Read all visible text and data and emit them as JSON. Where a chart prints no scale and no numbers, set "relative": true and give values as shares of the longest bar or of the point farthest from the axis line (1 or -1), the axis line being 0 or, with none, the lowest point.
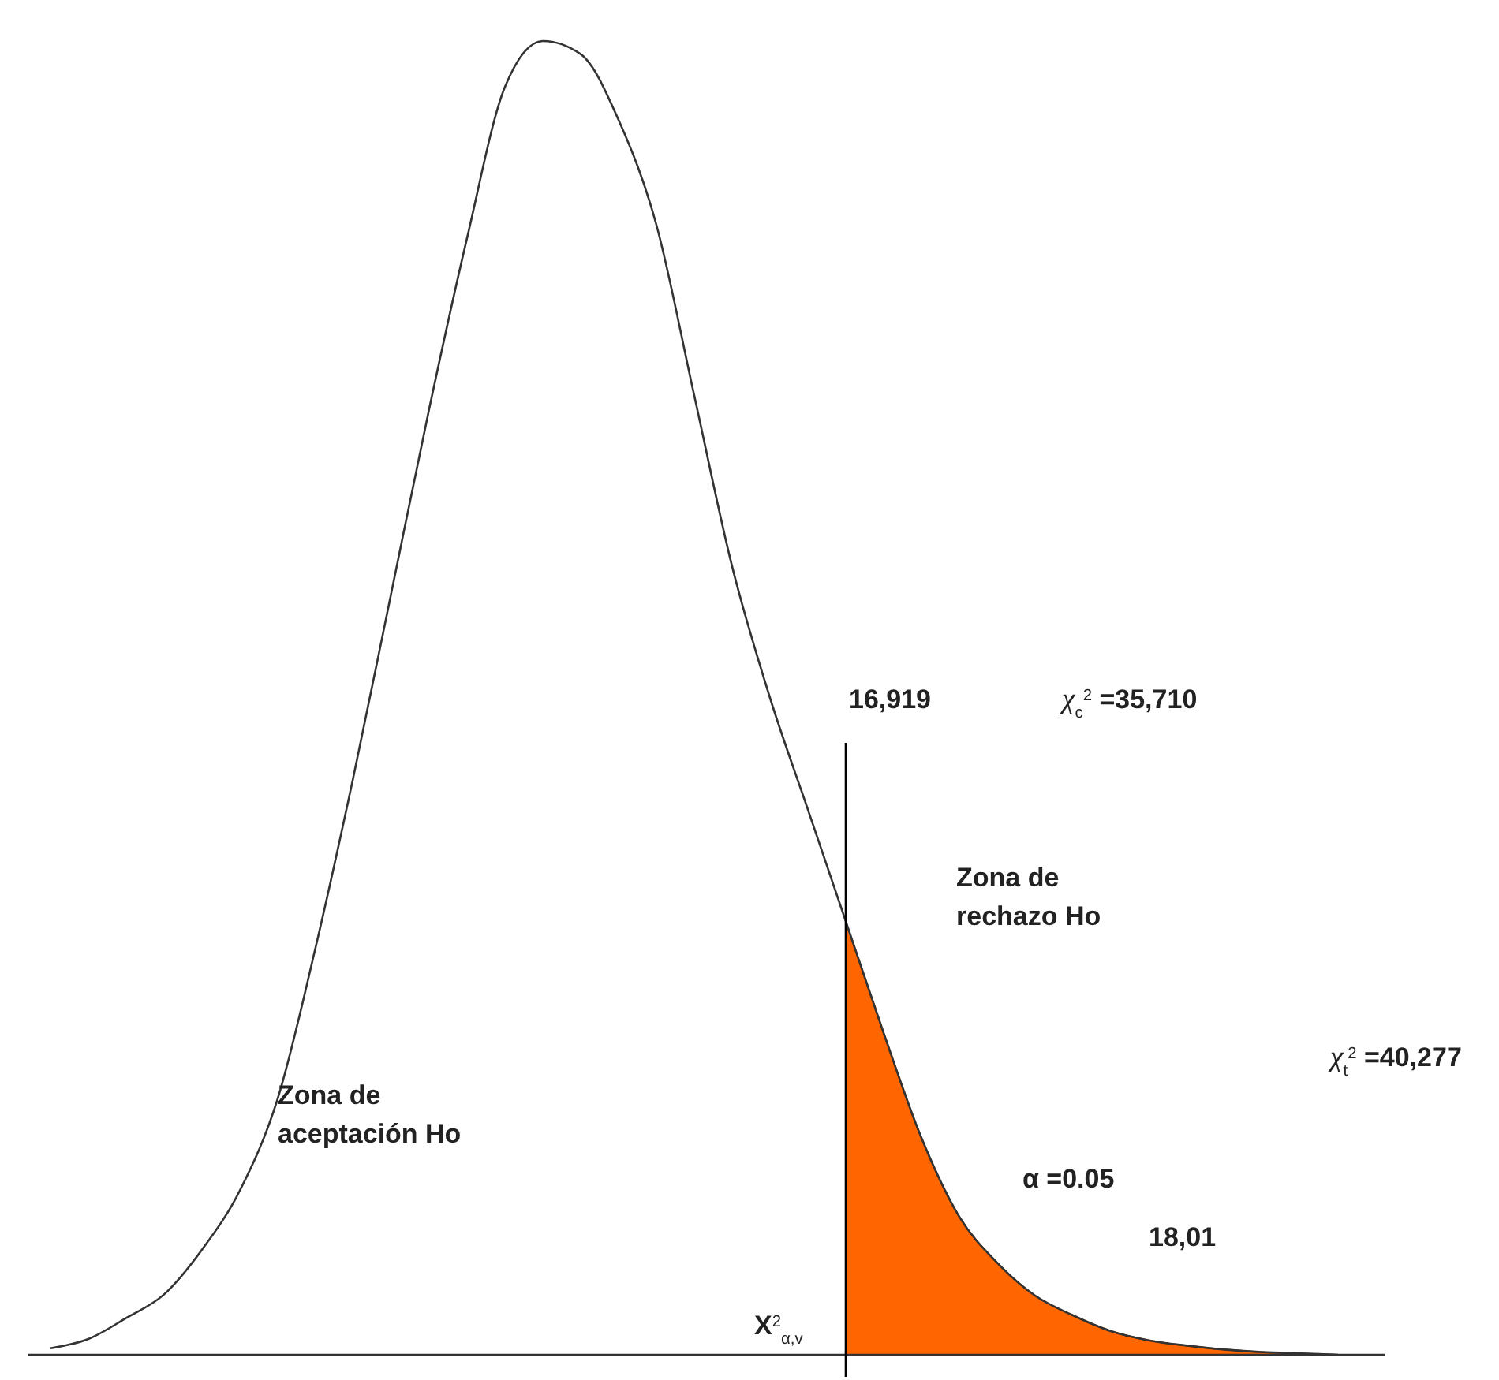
{
  "chart_data": {
    "type": "line",
    "relative": true,
    "categories": [
      null,
      null,
      null,
      null,
      null,
      null,
      null,
      null,
      null,
      null,
      null,
      null,
      null,
      null,
      null,
      null,
      null,
      null,
      null,
      null,
      null,
      null,
      null,
      null,
      null,
      null,
      null,
      null,
      null,
      null,
      null,
      null,
      null,
      null,
      null
    ],
    "series": [
      {
        "color": "#333333",
        "values": [
          0.005,
          0.012,
          0.028,
          0.046,
          0.08,
          0.125,
          0.195,
          0.31,
          0.44,
          0.58,
          0.72,
          0.85,
          0.965,
          1.0,
          0.99,
          0.94,
          0.86,
          0.73,
          0.6,
          0.5,
          0.415,
          0.33,
          0.245,
          0.165,
          0.105,
          0.07,
          0.045,
          0.03,
          0.018,
          0.011,
          0.007,
          0.004,
          0.002,
          0.001,
          0.0
        ]
      },
      {
        "type": "area",
        "color": "#ff6600",
        "values": [
          null,
          null,
          null,
          null,
          null,
          null,
          null,
          null,
          null,
          null,
          null,
          null,
          null,
          null,
          null,
          null,
          null,
          null,
          null,
          null,
          null,
          0.33,
          0.245,
          0.165,
          0.105,
          0.07,
          0.045,
          0.03,
          0.018,
          0.011,
          0.007,
          0.004,
          0.002,
          0.001,
          0.0
        ]
      }
    ],
    "annotations": [
      "16,919",
      "χ$_{c}$$^{2}$ =35,710",
      "Zona de\nrechazo Ho",
      "χ$_{t}$$^{2}$ =40,277",
      "Zona de\naceptación Ho",
      "α =0.05",
      "18,01",
      "X$^{2}$$_{α,v}$"
    ]
  }
}
